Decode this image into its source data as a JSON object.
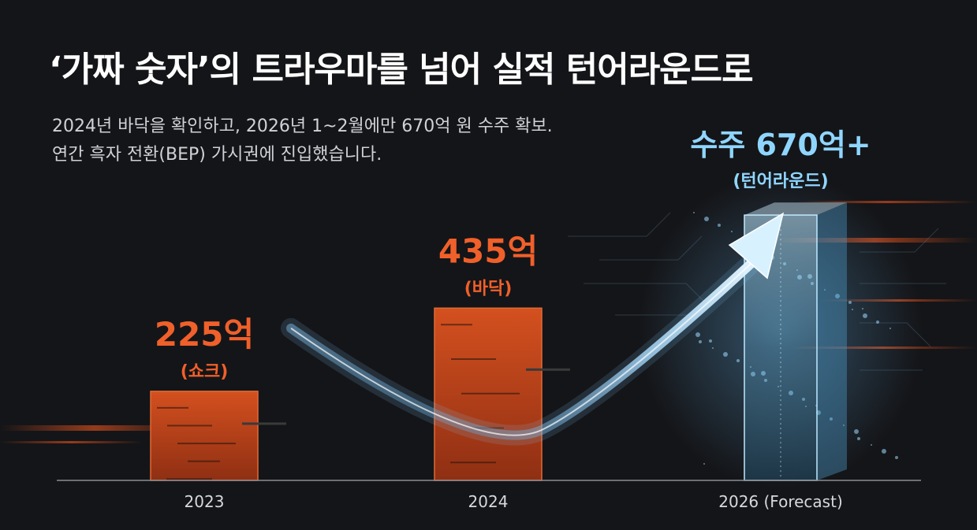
{
  "header": {
    "title": "‘가짜 숫자’의 트라우마를 넘어 실적 턴어라운드로",
    "subtitle_line1": "2024년 바닥을 확인하고, 2026년 1~2월에만 670억 원 수주 확보.",
    "subtitle_line2": "연간 흑자 전환(BEP) 가시권에 진입했습니다."
  },
  "colors": {
    "background": "#141518",
    "bar_orange": "#c8461e",
    "label_orange": "#f0602a",
    "forecast_blue": "#8fd6ff",
    "axis": "#8a8d94",
    "tick_text": "#d6d8dc"
  },
  "chart_data": {
    "type": "bar",
    "categories": [
      "2023",
      "2024",
      "2026 (Forecast)"
    ],
    "values": [
      225,
      435,
      670
    ],
    "data_labels": [
      "225억",
      "435억",
      "수주 670억+"
    ],
    "data_sublabels": [
      "(쇼크)",
      "(바닥)",
      "(턴어라운드)"
    ],
    "forecast_index": 2,
    "trend_arrow": true,
    "xlabel": "",
    "ylabel": "",
    "ylim": [
      0,
      700
    ],
    "grid": false,
    "legend": "none"
  }
}
